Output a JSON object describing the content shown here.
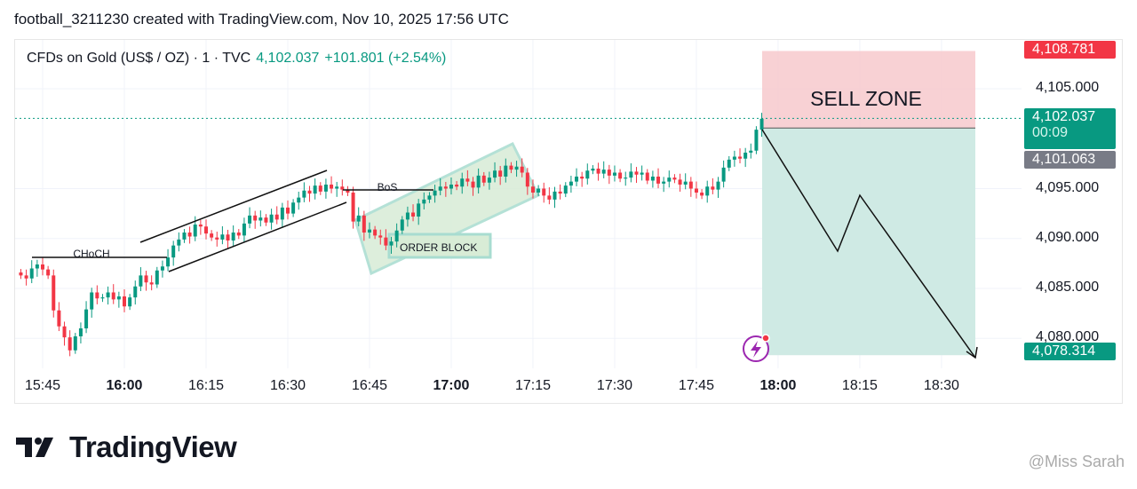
{
  "header": {
    "title": "football_3211230 created with TradingView.com, Nov 10, 2025 17:56 UTC"
  },
  "legend": {
    "symbol": "CFDs on Gold (US$ / OZ) · 1 · TVC",
    "price": "4,102.037",
    "change": "+101.801 (+2.54%)"
  },
  "price_tags": {
    "stop": "4,108.781",
    "last": "4,102.037",
    "countdown": "00:09",
    "entry": "4,101.063",
    "target": "4,078.314"
  },
  "colors": {
    "up": "#089981",
    "down": "#f23645",
    "sell_zone": "#f7c9cd",
    "profit_zone": "#cfeae4",
    "order_block": "#d8ecd6"
  },
  "annotations": {
    "sell_zone": "SELL ZONE",
    "choch": "CHoCH",
    "bos": "BoS",
    "order_block": "ORDER BLOCK"
  },
  "brand": {
    "logo_text": "TradingView",
    "watermark": "@Miss Sarah"
  },
  "chart_data": {
    "type": "candlestick",
    "interval_minutes": 1,
    "start_time": "15:41",
    "x_ticks": [
      {
        "t": "15:45",
        "bold": false
      },
      {
        "t": "16:00",
        "bold": true
      },
      {
        "t": "16:15",
        "bold": false
      },
      {
        "t": "16:30",
        "bold": false
      },
      {
        "t": "16:45",
        "bold": false
      },
      {
        "t": "17:00",
        "bold": true
      },
      {
        "t": "17:15",
        "bold": false
      },
      {
        "t": "17:30",
        "bold": false
      },
      {
        "t": "17:45",
        "bold": false
      },
      {
        "t": "18:00",
        "bold": true
      },
      {
        "t": "18:15",
        "bold": false
      },
      {
        "t": "18:30",
        "bold": false
      }
    ],
    "y_ticks": [
      "4,080.000",
      "4,085.000",
      "4,090.000",
      "4,095.000",
      "4,105.000"
    ],
    "y_tick_values": [
      4080,
      4085,
      4090,
      4095,
      4105
    ],
    "closes": [
      4086.3,
      4086.0,
      4087.0,
      4087.4,
      4086.9,
      4086.3,
      4082.8,
      4081.2,
      4080.1,
      4078.8,
      4080.2,
      4081.0,
      4082.9,
      4084.6,
      4084.0,
      4084.1,
      4084.6,
      4083.9,
      4084.2,
      4083.2,
      4084.1,
      4085.2,
      4086.3,
      4085.6,
      4085.4,
      4086.8,
      4087.2,
      4088.1,
      4089.3,
      4089.9,
      4090.6,
      4090.2,
      4091.4,
      4091.2,
      4090.5,
      4090.1,
      4089.9,
      4090.4,
      4089.8,
      4090.6,
      4090.3,
      4091.5,
      4092.3,
      4091.8,
      4092.1,
      4091.6,
      4092.4,
      4091.9,
      4093.1,
      4092.5,
      4093.6,
      4094.1,
      4094.8,
      4094.5,
      4095.3,
      4094.7,
      4095.4,
      4095.0,
      4095.2,
      4094.9,
      4094.6,
      4091.7,
      4092.3,
      4090.6,
      4090.9,
      4090.3,
      4090.1,
      4089.3,
      4089.7,
      4090.8,
      4091.9,
      4092.6,
      4092.2,
      4093.5,
      4093.9,
      4094.3,
      4094.8,
      4095.2,
      4095.0,
      4095.4,
      4095.2,
      4096.0,
      4095.7,
      4095.1,
      4096.3,
      4095.6,
      4096.1,
      4096.8,
      4096.2,
      4097.3,
      4096.9,
      4097.2,
      4096.6,
      4095.2,
      4094.6,
      4095.0,
      4094.3,
      4093.9,
      4094.7,
      4094.5,
      4095.3,
      4095.7,
      4096.2,
      4096.0,
      4096.8,
      4097.0,
      4096.5,
      4096.9,
      4096.3,
      4096.6,
      4096.0,
      4096.1,
      4096.7,
      4096.4,
      4096.6,
      4095.8,
      4096.2,
      4095.5,
      4095.7,
      4096.1,
      4095.9,
      4095.4,
      4095.7,
      4095.0,
      4094.6,
      4094.3,
      4095.2,
      4094.9,
      4095.7,
      4097.1,
      4097.9,
      4098.2,
      4098.0,
      4098.6,
      4098.8,
      4100.9,
      4102.0
    ],
    "last_price": 4102.037,
    "position": {
      "type": "short",
      "entry": 4101.063,
      "stop": 4108.781,
      "target": 4078.314
    }
  }
}
